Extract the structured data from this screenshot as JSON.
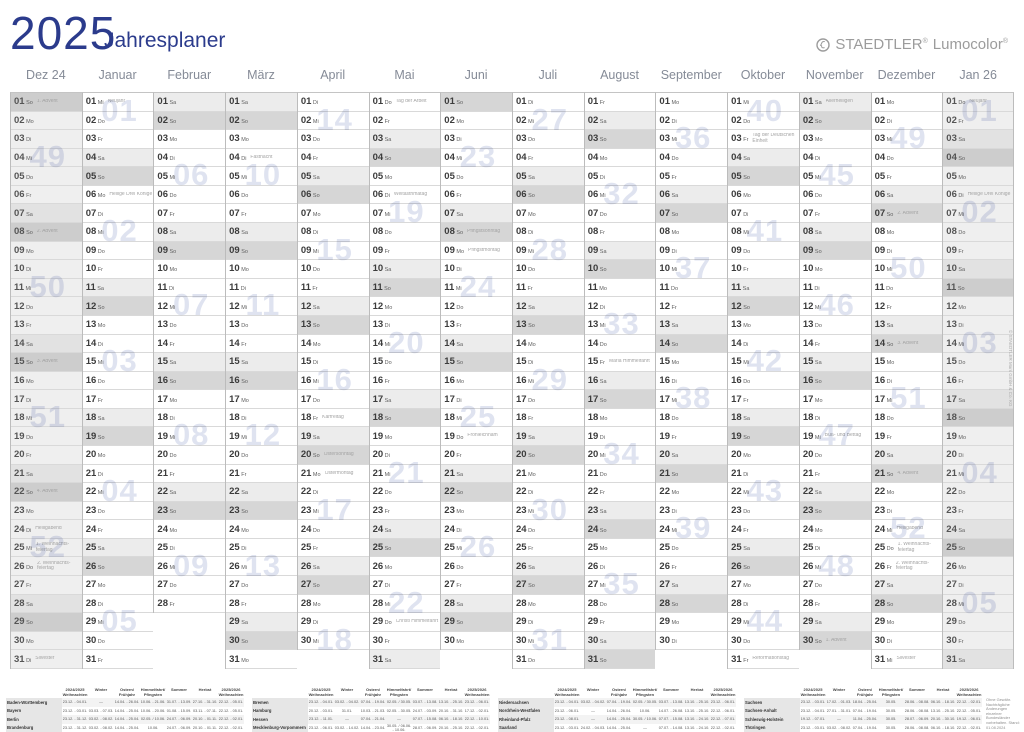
{
  "title": {
    "year": "2025",
    "subtitle": "Jahresplaner"
  },
  "brand": {
    "name": "STAEDTLER",
    "name_reg": "®",
    "product": "Lumocolor",
    "product_reg": "®"
  },
  "side_text": "© STAEDTLER Mars GmbH & Co. KG",
  "weekday_labels": [
    "Mo",
    "Di",
    "Mi",
    "Do",
    "Fr",
    "Sa",
    "So"
  ],
  "colors": {
    "accent_blue": "#2b3b8c",
    "logo_gray": "#9c9c9c",
    "weekend_saturday": "#ececec",
    "weekend_sunday": "#d6d6d6",
    "week_watermark": "#dfe3f0"
  },
  "months": [
    {
      "key": "dez24",
      "label": "Dez 24",
      "days": 31,
      "start": 6,
      "adjacent": true,
      "notes": {
        "1": "1. Advent",
        "8": "2. Advent",
        "15": "3. Advent",
        "22": "4. Advent",
        "24": "Heiligabend",
        "25": "1. Weihnachts-feiertag",
        "26": "2. Weihnachts-feiertag",
        "31": "Silvester"
      },
      "weeks": [
        {
          "d": 4,
          "n": "49"
        },
        {
          "d": 11,
          "n": "50"
        },
        {
          "d": 18,
          "n": "51"
        },
        {
          "d": 25,
          "n": "52"
        }
      ]
    },
    {
      "key": "jan",
      "label": "Januar",
      "days": 31,
      "start": 2,
      "adjacent": false,
      "notes": {
        "1": "Neujahr",
        "6": "Heilige Drei Könige"
      },
      "weeks": [
        {
          "d": 1,
          "n": "01"
        },
        {
          "d": 8,
          "n": "02"
        },
        {
          "d": 15,
          "n": "03"
        },
        {
          "d": 22,
          "n": "04"
        },
        {
          "d": 29,
          "n": "05"
        }
      ]
    },
    {
      "key": "feb",
      "label": "Februar",
      "days": 28,
      "start": 5,
      "adjacent": false,
      "notes": {},
      "weeks": [
        {
          "d": 5,
          "n": "06"
        },
        {
          "d": 12,
          "n": "07"
        },
        {
          "d": 19,
          "n": "08"
        },
        {
          "d": 26,
          "n": "09"
        }
      ]
    },
    {
      "key": "mar",
      "label": "März",
      "days": 31,
      "start": 5,
      "adjacent": false,
      "notes": {
        "4": "Fastnacht"
      },
      "weeks": [
        {
          "d": 5,
          "n": "10"
        },
        {
          "d": 12,
          "n": "11"
        },
        {
          "d": 19,
          "n": "12"
        },
        {
          "d": 26,
          "n": "13"
        }
      ]
    },
    {
      "key": "apr",
      "label": "April",
      "days": 30,
      "start": 1,
      "adjacent": false,
      "notes": {
        "18": "Karfreitag",
        "20": "Ostersonntag",
        "21": "Ostermontag"
      },
      "weeks": [
        {
          "d": 2,
          "n": "14"
        },
        {
          "d": 9,
          "n": "15"
        },
        {
          "d": 16,
          "n": "16"
        },
        {
          "d": 23,
          "n": "17"
        },
        {
          "d": 30,
          "n": "18"
        }
      ]
    },
    {
      "key": "mai",
      "label": "Mai",
      "days": 31,
      "start": 3,
      "adjacent": false,
      "notes": {
        "1": "Tag der Arbeit",
        "6": "Weltasthmatag",
        "29": "Christi Himmelfahrt"
      },
      "weeks": [
        {
          "d": 7,
          "n": "19"
        },
        {
          "d": 14,
          "n": "20"
        },
        {
          "d": 21,
          "n": "21"
        },
        {
          "d": 28,
          "n": "22"
        }
      ]
    },
    {
      "key": "jun",
      "label": "Juni",
      "days": 30,
      "start": 6,
      "adjacent": false,
      "notes": {
        "8": "Pfingstsonntag",
        "9": "Pfingstmontag",
        "19": "Fronleichnam"
      },
      "weeks": [
        {
          "d": 4,
          "n": "23"
        },
        {
          "d": 11,
          "n": "24"
        },
        {
          "d": 18,
          "n": "25"
        },
        {
          "d": 25,
          "n": "26"
        }
      ]
    },
    {
      "key": "jul",
      "label": "Juli",
      "days": 31,
      "start": 1,
      "adjacent": false,
      "notes": {},
      "weeks": [
        {
          "d": 2,
          "n": "27"
        },
        {
          "d": 9,
          "n": "28"
        },
        {
          "d": 16,
          "n": "29"
        },
        {
          "d": 23,
          "n": "30"
        },
        {
          "d": 30,
          "n": "31"
        }
      ]
    },
    {
      "key": "aug",
      "label": "August",
      "days": 31,
      "start": 4,
      "adjacent": false,
      "notes": {
        "15": "Mariä Himmelfahrt"
      },
      "weeks": [
        {
          "d": 6,
          "n": "32"
        },
        {
          "d": 13,
          "n": "33"
        },
        {
          "d": 20,
          "n": "34"
        },
        {
          "d": 27,
          "n": "35"
        }
      ]
    },
    {
      "key": "sep",
      "label": "September",
      "days": 30,
      "start": 0,
      "adjacent": false,
      "notes": {},
      "weeks": [
        {
          "d": 3,
          "n": "36"
        },
        {
          "d": 10,
          "n": "37"
        },
        {
          "d": 17,
          "n": "38"
        },
        {
          "d": 24,
          "n": "39"
        }
      ]
    },
    {
      "key": "okt",
      "label": "Oktober",
      "days": 31,
      "start": 2,
      "adjacent": false,
      "notes": {
        "3": "Tag der Deutschen Einheit",
        "31": "Reformationstag"
      },
      "weeks": [
        {
          "d": 1,
          "n": "40"
        },
        {
          "d": 8,
          "n": "41"
        },
        {
          "d": 15,
          "n": "42"
        },
        {
          "d": 22,
          "n": "43"
        },
        {
          "d": 29,
          "n": "44"
        }
      ]
    },
    {
      "key": "nov",
      "label": "November",
      "days": 30,
      "start": 5,
      "adjacent": false,
      "notes": {
        "1": "Allerheiligen",
        "19": "Buß- und Bettag",
        "30": "1. Advent"
      },
      "weeks": [
        {
          "d": 5,
          "n": "45"
        },
        {
          "d": 12,
          "n": "46"
        },
        {
          "d": 19,
          "n": "47"
        },
        {
          "d": 26,
          "n": "48"
        }
      ]
    },
    {
      "key": "dez",
      "label": "Dezember",
      "days": 31,
      "start": 0,
      "adjacent": false,
      "notes": {
        "7": "2. Advent",
        "14": "3. Advent",
        "21": "4. Advent",
        "24": "Heiligabend",
        "25": "1. Weihnachts-feiertag",
        "26": "2. Weihnachts-feiertag",
        "31": "Silvester"
      },
      "weeks": [
        {
          "d": 3,
          "n": "49"
        },
        {
          "d": 10,
          "n": "50"
        },
        {
          "d": 17,
          "n": "51"
        },
        {
          "d": 24,
          "n": "52"
        }
      ]
    },
    {
      "key": "jan26",
      "label": "Jan 26",
      "days": 31,
      "start": 3,
      "adjacent": true,
      "notes": {
        "1": "Neujahr",
        "6": "Heilige Drei Könige"
      },
      "weeks": [
        {
          "d": 1,
          "n": "01"
        },
        {
          "d": 7,
          "n": "02"
        },
        {
          "d": 14,
          "n": "03"
        },
        {
          "d": 21,
          "n": "04"
        },
        {
          "d": 28,
          "n": "05"
        }
      ]
    }
  ],
  "footer": {
    "col_headers": [
      [
        "2024/2025",
        "Weihnachten"
      ],
      [
        "Winter",
        ""
      ],
      [
        "Ostern/",
        "Frühjahr"
      ],
      [
        "Himmelfahrt/",
        "Pfingsten"
      ],
      [
        "Sommer",
        ""
      ],
      [
        "Herbst",
        ""
      ],
      [
        "2025/2026",
        "Weihnachten"
      ]
    ],
    "blocks": [
      [
        {
          "state": "Baden-Württemberg",
          "dates": [
            "23.12. - 04.01.",
            "—",
            "14.04. - 26.04.",
            "10.06. - 21.06.",
            "31.07. - 13.09.",
            "27.10. - 31.10.",
            "22.12. - 05.01."
          ]
        },
        {
          "state": "Bayern",
          "dates": [
            "23.12. - 03.01.",
            "03.03. - 07.03.",
            "14.04. - 25.04.",
            "10.06. - 20.06.",
            "01.08. - 15.09.",
            "03.11. - 07.11.",
            "22.12. - 05.01."
          ]
        },
        {
          "state": "Berlin",
          "dates": [
            "23.12. - 31.12.",
            "03.02. - 08.02.",
            "14.04. - 25.04.",
            "02.05. / 10.06.",
            "24.07. - 06.09.",
            "20.10. - 01.11.",
            "22.12. - 02.01."
          ]
        },
        {
          "state": "Brandenburg",
          "dates": [
            "23.12. - 31.12.",
            "03.02. - 08.02.",
            "14.04. - 25.04.",
            "10.06.",
            "24.07. - 06.09.",
            "20.10. - 01.11.",
            "22.12. - 02.01."
          ]
        }
      ],
      [
        {
          "state": "Bremen",
          "dates": [
            "23.12. - 04.01.",
            "03.02. - 04.02.",
            "07.04. - 19.04.",
            "02.05. / 30.05.",
            "03.07. - 13.08.",
            "13.10. - 25.10.",
            "23.12. - 06.01."
          ]
        },
        {
          "state": "Hamburg",
          "dates": [
            "20.12. - 03.01.",
            "31.01.",
            "10.03. - 21.03.",
            "02.05. - 30.05.",
            "24.07. - 03.09.",
            "20.10. - 31.10.",
            "17.12. - 02.01."
          ]
        },
        {
          "state": "Hessen",
          "dates": [
            "23.12. - 11.01.",
            "—",
            "07.04. - 21.04.",
            "—",
            "07.07. - 15.08.",
            "06.10. - 18.10.",
            "22.12. - 10.01."
          ]
        },
        {
          "state": "Mecklenburg-Vorpommern",
          "dates": [
            "23.12. - 06.01.",
            "03.02. - 14.02.",
            "14.04. - 23.04.",
            "30.05. / 06.06. - 10.06.",
            "28.07. - 06.09.",
            "20.10. - 25.10.",
            "22.12. - 02.01."
          ]
        }
      ],
      [
        {
          "state": "Niedersachsen",
          "dates": [
            "23.12. - 04.01.",
            "03.02. - 04.02.",
            "07.04. - 19.04.",
            "02.05. / 30.05.",
            "03.07. - 13.08.",
            "13.10. - 25.10.",
            "23.12. - 06.01."
          ]
        },
        {
          "state": "Nordrhein-Westfalen",
          "dates": [
            "23.12. - 06.01.",
            "—",
            "14.04. - 26.04.",
            "10.06.",
            "14.07. - 26.08.",
            "13.10. - 25.10.",
            "22.12. - 06.01."
          ]
        },
        {
          "state": "Rheinland-Pfalz",
          "dates": [
            "23.12. - 08.01.",
            "—",
            "14.04. - 25.04.",
            "30.05. / 10.06.",
            "07.07. - 15.08.",
            "13.10. - 24.10.",
            "22.12. - 07.01."
          ]
        },
        {
          "state": "Saarland",
          "dates": [
            "23.12. - 03.01.",
            "24.02. - 04.03.",
            "14.04. - 25.04.",
            "—",
            "07.07. - 14.08.",
            "13.10. - 24.10.",
            "22.12. - 02.01."
          ]
        }
      ],
      [
        {
          "state": "Sachsen",
          "dates": [
            "23.12. - 03.01.",
            "17.02. - 01.03.",
            "18.04. - 25.04.",
            "30.05.",
            "28.06. - 08.08.",
            "06.10. - 18.10.",
            "22.12. - 02.01."
          ]
        },
        {
          "state": "Sachsen-Anhalt",
          "dates": [
            "23.12. - 04.01.",
            "27.01. - 31.01.",
            "07.04. - 19.04.",
            "30.05.",
            "28.06. - 08.08.",
            "13.10. - 25.10.",
            "22.12. - 05.01."
          ]
        },
        {
          "state": "Schleswig-Holstein",
          "dates": [
            "19.12. - 07.01.",
            "—",
            "11.04. - 25.04.",
            "30.05.",
            "28.07. - 06.09.",
            "20.10. - 30.10.",
            "19.12. - 06.01."
          ]
        },
        {
          "state": "Thüringen",
          "dates": [
            "23.12. - 03.01.",
            "03.02. - 08.02.",
            "07.04. - 19.04.",
            "30.05.",
            "28.06. - 08.08.",
            "06.10. - 18.10.",
            "22.12. - 02.01."
          ]
        }
      ]
    ],
    "note_lines": [
      "Ohne Gewähr.",
      "Nachträgliche Änderungen",
      "einzelner Bundesländer",
      "vorbehalten. Stand: 01.08.2024"
    ]
  }
}
